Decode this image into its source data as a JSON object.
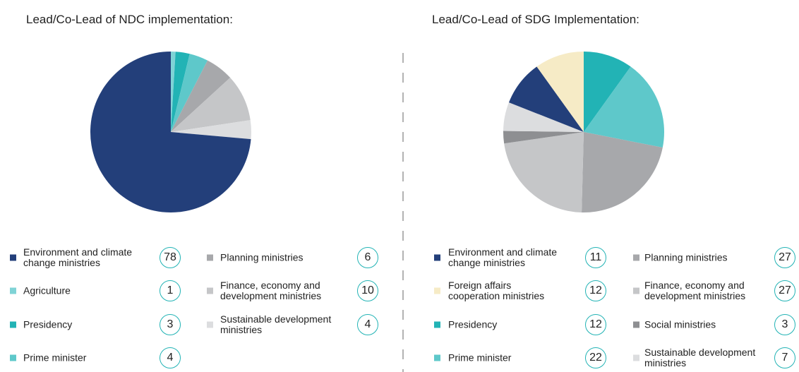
{
  "chart_data": [
    {
      "type": "pie",
      "title": "Lead/Co-Lead of NDC implementation:",
      "categories": [
        "Agriculture",
        "Presidency",
        "Prime minister",
        "Planning ministries",
        "Finance, economy and development ministries",
        "Sustainable development ministries",
        "Environment and climate change ministries"
      ],
      "values": [
        1,
        3,
        4,
        6,
        10,
        4,
        78
      ],
      "colors": [
        "#7fd3d6",
        "#22b3b5",
        "#5ec8ca",
        "#a7a8ab",
        "#c5c6c8",
        "#dcdddf",
        "#233f7a"
      ]
    },
    {
      "type": "pie",
      "title": "Lead/Co-Lead of SDG Implementation:",
      "categories": [
        "Presidency",
        "Prime minister",
        "Planning ministries",
        "Finance, economy and development ministries",
        "Social ministries",
        "Sustainable development ministries",
        "Environment and climate change ministries",
        "Foreign affairs cooperation ministries"
      ],
      "values": [
        12,
        22,
        27,
        27,
        3,
        7,
        11,
        12
      ],
      "colors": [
        "#22b3b5",
        "#5ec8ca",
        "#a7a8ab",
        "#c5c6c8",
        "#8e8f92",
        "#dcdddf",
        "#233f7a",
        "#f6ebc6"
      ]
    }
  ]
}
